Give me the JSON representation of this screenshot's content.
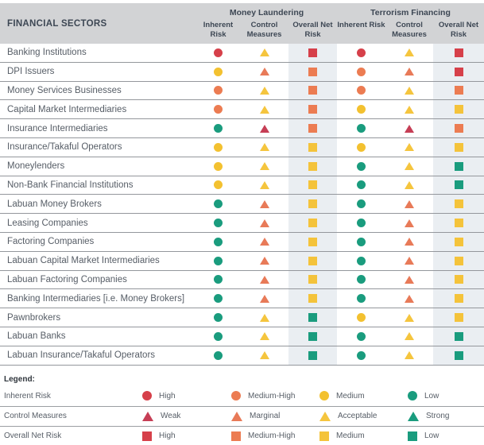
{
  "header": {
    "sectors_label": "FINANCIAL SECTORS",
    "groups": [
      {
        "label": "Money Laundering",
        "columns": [
          "Inherent Risk",
          "Control Measures",
          "Overall Net Risk"
        ]
      },
      {
        "label": "Terrorism Financing",
        "columns": [
          "Inherent Risk",
          "Control Measures",
          "Overall Net Risk"
        ]
      }
    ]
  },
  "chart_data": {
    "type": "table",
    "title": "",
    "columns": [
      "Financial Sectors",
      "ML Inherent Risk",
      "ML Control Measures",
      "ML Overall Net Risk",
      "TF Inherent Risk",
      "TF Control Measures",
      "TF Overall Net Risk"
    ],
    "rows": [
      {
        "sector": "Banking Institutions",
        "ml": [
          "high",
          "acceptable",
          "high"
        ],
        "tf": [
          "high",
          "acceptable",
          "high"
        ]
      },
      {
        "sector": "DPI Issuers",
        "ml": [
          "medium",
          "marginal",
          "medium-high"
        ],
        "tf": [
          "medium-high",
          "marginal",
          "high"
        ]
      },
      {
        "sector": "Money Services Businesses",
        "ml": [
          "medium-high",
          "acceptable",
          "medium-high"
        ],
        "tf": [
          "medium-high",
          "acceptable",
          "medium-high"
        ]
      },
      {
        "sector": "Capital Market Intermediaries",
        "ml": [
          "medium-high",
          "acceptable",
          "medium-high"
        ],
        "tf": [
          "medium",
          "acceptable",
          "medium"
        ]
      },
      {
        "sector": "Insurance Intermediaries",
        "ml": [
          "low",
          "weak",
          "medium-high"
        ],
        "tf": [
          "low",
          "weak",
          "medium-high"
        ]
      },
      {
        "sector": "Insurance/Takaful Operators",
        "ml": [
          "medium",
          "acceptable",
          "medium"
        ],
        "tf": [
          "medium",
          "acceptable",
          "medium"
        ]
      },
      {
        "sector": "Moneylenders",
        "ml": [
          "medium",
          "acceptable",
          "medium"
        ],
        "tf": [
          "low",
          "acceptable",
          "low"
        ]
      },
      {
        "sector": "Non-Bank Financial Institutions",
        "ml": [
          "medium",
          "acceptable",
          "medium"
        ],
        "tf": [
          "low",
          "acceptable",
          "low"
        ]
      },
      {
        "sector": "Labuan Money Brokers",
        "ml": [
          "low",
          "marginal",
          "medium"
        ],
        "tf": [
          "low",
          "marginal",
          "medium"
        ]
      },
      {
        "sector": "Leasing Companies",
        "ml": [
          "low",
          "marginal",
          "medium"
        ],
        "tf": [
          "low",
          "marginal",
          "medium"
        ]
      },
      {
        "sector": "Factoring Companies",
        "ml": [
          "low",
          "marginal",
          "medium"
        ],
        "tf": [
          "low",
          "marginal",
          "medium"
        ]
      },
      {
        "sector": "Labuan Capital Market Intermediaries",
        "ml": [
          "low",
          "marginal",
          "medium"
        ],
        "tf": [
          "low",
          "marginal",
          "medium"
        ]
      },
      {
        "sector": "Labuan Factoring Companies",
        "ml": [
          "low",
          "marginal",
          "medium"
        ],
        "tf": [
          "low",
          "marginal",
          "medium"
        ]
      },
      {
        "sector": "Banking Intermediaries [i.e. Money Brokers]",
        "ml": [
          "low",
          "marginal",
          "medium"
        ],
        "tf": [
          "low",
          "marginal",
          "medium"
        ]
      },
      {
        "sector": "Pawnbrokers",
        "ml": [
          "low",
          "acceptable",
          "low"
        ],
        "tf": [
          "medium",
          "acceptable",
          "medium"
        ]
      },
      {
        "sector": "Labuan Banks",
        "ml": [
          "low",
          "acceptable",
          "low"
        ],
        "tf": [
          "low",
          "acceptable",
          "low"
        ]
      },
      {
        "sector": "Labuan Insurance/Takaful Operators",
        "ml": [
          "low",
          "acceptable",
          "low"
        ],
        "tf": [
          "low",
          "acceptable",
          "low"
        ]
      }
    ]
  },
  "legend": {
    "title": "Legend:",
    "rows": [
      {
        "label": "Inherent Risk",
        "shape": "circle",
        "items": [
          {
            "level": "high",
            "label": "High"
          },
          {
            "level": "medium-high",
            "label": "Medium-High"
          },
          {
            "level": "medium",
            "label": "Medium"
          },
          {
            "level": "low",
            "label": "Low"
          }
        ]
      },
      {
        "label": "Control Measures",
        "shape": "triangle",
        "items": [
          {
            "level": "weak",
            "label": "Weak"
          },
          {
            "level": "marginal",
            "label": "Marginal"
          },
          {
            "level": "acceptable",
            "label": "Acceptable"
          },
          {
            "level": "strong",
            "label": "Strong"
          }
        ]
      },
      {
        "label": "Overall Net Risk",
        "shape": "square",
        "items": [
          {
            "level": "high",
            "label": "High"
          },
          {
            "level": "medium-high",
            "label": "Medium-High"
          },
          {
            "level": "medium",
            "label": "Medium"
          },
          {
            "level": "low",
            "label": "Low"
          }
        ]
      }
    ]
  },
  "colors": {
    "circle": {
      "high": "#d6404a",
      "medium-high": "#ec7c52",
      "medium": "#f3c130",
      "low": "#1a9c7e"
    },
    "triangle": {
      "weak": "#c63e55",
      "marginal": "#e87a58",
      "acceptable": "#f5c53e",
      "strong": "#1a9c7e"
    },
    "square": {
      "high": "#d6404a",
      "medium-high": "#ec7c52",
      "medium": "#f4c33b",
      "low": "#1a9c7e"
    },
    "header_bg": "#d2d3d5",
    "shaded_column_bg": "#eaeef2",
    "separator": "#94979c",
    "header_text": "#3d4754",
    "row_text": "#565d66"
  }
}
